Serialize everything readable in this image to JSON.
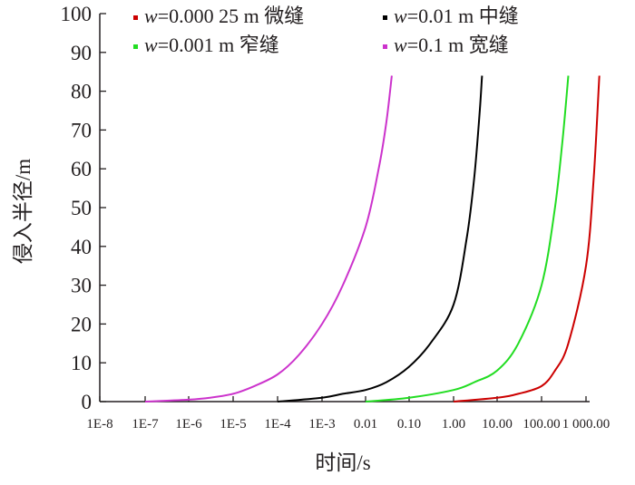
{
  "chart_data": {
    "type": "line",
    "title": "",
    "xlabel": "时间/s",
    "ylabel": "侵入半径/m",
    "x_scale": "log",
    "x_ticks": [
      "1E-8",
      "1E-7",
      "1E-6",
      "1E-5",
      "1E-4",
      "1E-3",
      "0.01",
      "0.10",
      "1.00",
      "10.00",
      "100.00",
      "1 000.00"
    ],
    "ylim": [
      0,
      100
    ],
    "y_ticks": [
      0,
      10,
      20,
      30,
      40,
      50,
      60,
      70,
      80,
      90,
      100
    ],
    "grid": false,
    "legend_position": "top",
    "series": [
      {
        "name": "w=0.000 25 m 微缝",
        "color": "#cc0000",
        "x": [
          1,
          10,
          30,
          100,
          200,
          400,
          1000,
          1500,
          2000
        ],
        "y": [
          0,
          1,
          2,
          4,
          8,
          15,
          35,
          58,
          84
        ]
      },
      {
        "name": "w=0.01 m 中缝",
        "color": "#000000",
        "x": [
          0.0001,
          0.001,
          0.003,
          0.01,
          0.03,
          0.1,
          0.3,
          1,
          2,
          3,
          4,
          4.5
        ],
        "y": [
          0,
          1,
          2,
          3,
          5,
          9,
          15,
          25,
          42,
          58,
          75,
          84
        ]
      },
      {
        "name": "w=0.001 m 窄缝",
        "color": "#22dd22",
        "x": [
          0.01,
          0.1,
          1,
          3,
          10,
          30,
          100,
          200,
          300,
          400
        ],
        "y": [
          0,
          1,
          3,
          5,
          8,
          15,
          30,
          50,
          68,
          84
        ]
      },
      {
        "name": "w=0.1 m 宽缝",
        "color": "#cc33cc",
        "x": [
          1e-07,
          1e-06,
          3e-06,
          1e-05,
          3e-05,
          0.0001,
          0.0003,
          0.001,
          0.003,
          0.01,
          0.02,
          0.03,
          0.04
        ],
        "y": [
          0,
          0.5,
          1,
          2,
          4,
          7,
          12,
          20,
          30,
          45,
          60,
          72,
          84
        ]
      }
    ]
  }
}
